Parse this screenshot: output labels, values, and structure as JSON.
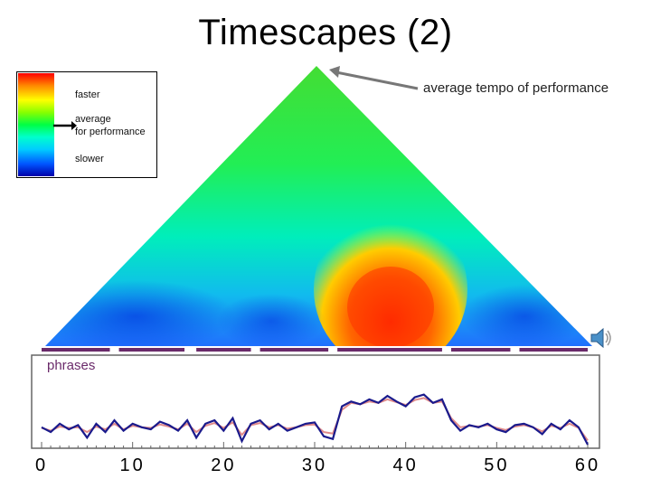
{
  "title": "Timescapes (2)",
  "legend": {
    "faster": "faster",
    "average": "average\nfor performance",
    "slower": "slower"
  },
  "annotation": "average tempo of performance",
  "phrases_label": "phrases",
  "colors": {
    "line_performance": "#1a1a8c",
    "line_smoothed": "#e08a8a",
    "phrase_bar": "#6a2a6a"
  },
  "chart_data": [
    {
      "type": "heatmap",
      "title": "Timescapes (2)",
      "description_of_scale": [
        "faster",
        "average for performance",
        "slower"
      ],
      "x_range": [
        0,
        60
      ],
      "regions": [
        {
          "x_start": 33,
          "x_end": 44,
          "level": "faster"
        },
        {
          "x_start": 0,
          "x_end": 60,
          "level": "average for performance"
        }
      ]
    },
    {
      "type": "line",
      "xlabel": "",
      "ylabel": "",
      "xlim": [
        0,
        60
      ],
      "x_ticks": [
        0,
        10,
        20,
        30,
        40,
        50,
        60
      ],
      "x_tick_labels": [
        "0",
        "10",
        "20",
        "30",
        "40",
        "50",
        "60"
      ],
      "phrases": [
        [
          0,
          7.5
        ],
        [
          8.5,
          15.7
        ],
        [
          17,
          23
        ],
        [
          24,
          31.5
        ],
        [
          32.5,
          44
        ],
        [
          45,
          51.5
        ],
        [
          52.5,
          60
        ]
      ],
      "series": [
        {
          "name": "performance",
          "x": [
            0,
            1,
            2,
            3,
            4,
            5,
            6,
            7,
            8,
            9,
            10,
            11,
            12,
            13,
            14,
            15,
            16,
            17,
            18,
            19,
            20,
            21,
            22,
            23,
            24,
            25,
            26,
            27,
            28,
            29,
            30,
            31,
            32,
            33,
            34,
            35,
            36,
            37,
            38,
            39,
            40,
            41,
            42,
            43,
            44,
            45,
            46,
            47,
            48,
            49,
            50,
            51,
            52,
            53,
            54,
            55,
            56,
            57,
            58,
            59,
            60
          ],
          "values": [
            0.25,
            0.18,
            0.3,
            0.22,
            0.28,
            0.1,
            0.3,
            0.18,
            0.35,
            0.2,
            0.3,
            0.25,
            0.22,
            0.33,
            0.28,
            0.2,
            0.35,
            0.1,
            0.3,
            0.35,
            0.2,
            0.38,
            0.05,
            0.3,
            0.35,
            0.22,
            0.3,
            0.2,
            0.25,
            0.3,
            0.32,
            0.12,
            0.08,
            0.55,
            0.62,
            0.58,
            0.65,
            0.6,
            0.7,
            0.62,
            0.55,
            0.68,
            0.72,
            0.6,
            0.65,
            0.35,
            0.2,
            0.28,
            0.25,
            0.3,
            0.22,
            0.18,
            0.28,
            0.3,
            0.25,
            0.15,
            0.3,
            0.22,
            0.35,
            0.25,
            0.0
          ]
        },
        {
          "name": "average tempo",
          "x": [
            0,
            1,
            2,
            3,
            4,
            5,
            6,
            7,
            8,
            9,
            10,
            11,
            12,
            13,
            14,
            15,
            16,
            17,
            18,
            19,
            20,
            21,
            22,
            23,
            24,
            25,
            26,
            27,
            28,
            29,
            30,
            31,
            32,
            33,
            34,
            35,
            36,
            37,
            38,
            39,
            40,
            41,
            42,
            43,
            44,
            45,
            46,
            47,
            48,
            49,
            50,
            51,
            52,
            53,
            54,
            55,
            56,
            57,
            58,
            59,
            60
          ],
          "values": [
            0.24,
            0.2,
            0.26,
            0.24,
            0.25,
            0.18,
            0.26,
            0.22,
            0.3,
            0.22,
            0.27,
            0.25,
            0.24,
            0.29,
            0.26,
            0.22,
            0.3,
            0.18,
            0.27,
            0.31,
            0.24,
            0.32,
            0.14,
            0.28,
            0.31,
            0.25,
            0.28,
            0.23,
            0.25,
            0.28,
            0.29,
            0.18,
            0.16,
            0.5,
            0.6,
            0.58,
            0.62,
            0.6,
            0.65,
            0.61,
            0.57,
            0.64,
            0.67,
            0.6,
            0.62,
            0.38,
            0.25,
            0.27,
            0.26,
            0.28,
            0.24,
            0.21,
            0.26,
            0.28,
            0.25,
            0.19,
            0.27,
            0.24,
            0.3,
            0.24,
            0.06
          ]
        }
      ]
    }
  ]
}
